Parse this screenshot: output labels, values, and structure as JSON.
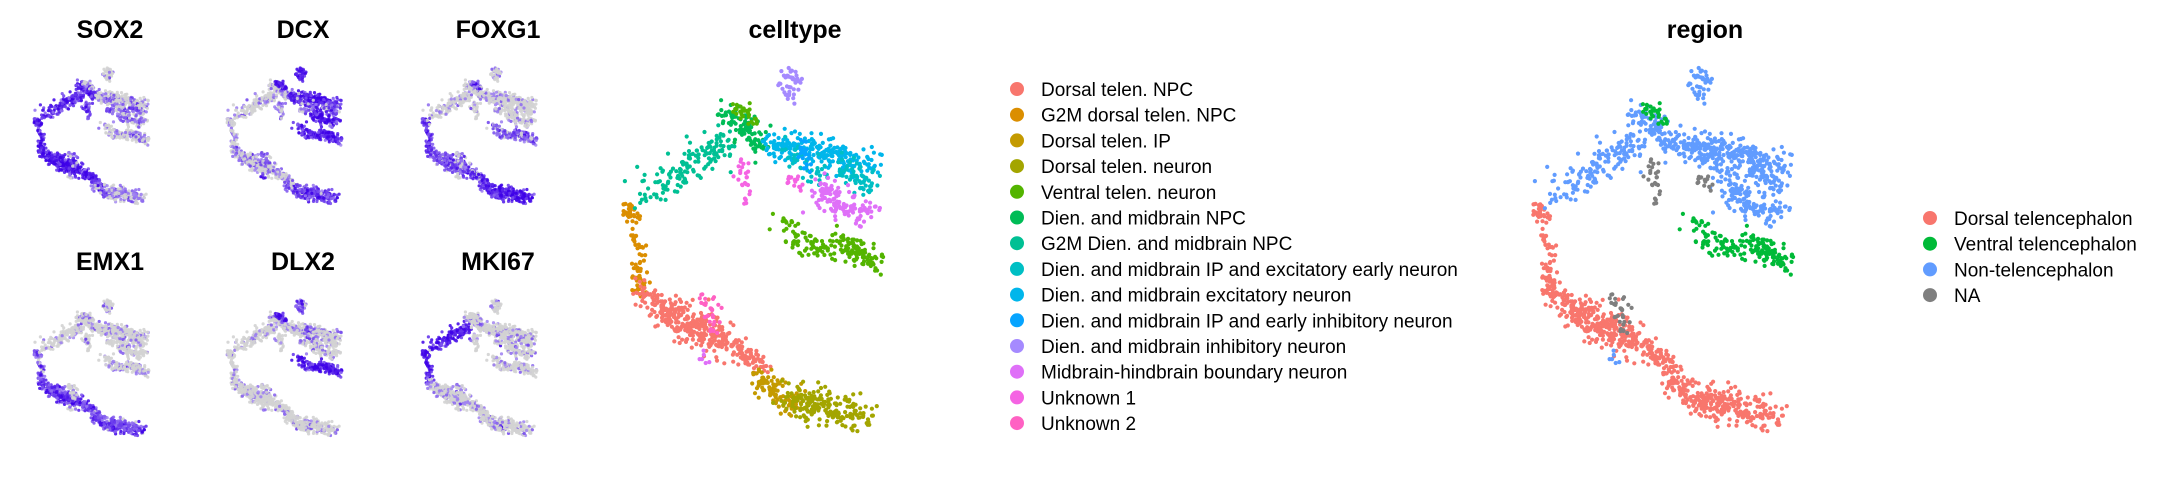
{
  "chart_data": [
    {
      "type": "scatter",
      "title": "SOX2",
      "encoding": "expression",
      "low_color": "#d3d3d3",
      "high_color": "#3d00e8",
      "high_regions": [
        "left arm",
        "lower diagonal",
        "upper-left arc"
      ]
    },
    {
      "type": "scatter",
      "title": "DCX",
      "encoding": "expression",
      "low_color": "#d3d3d3",
      "high_color": "#3d00e8",
      "high_regions": [
        "right cluster",
        "upper-right arc",
        "lower-right cluster"
      ]
    },
    {
      "type": "scatter",
      "title": "FOXG1",
      "encoding": "expression",
      "low_color": "#d3d3d3",
      "high_color": "#3d00e8",
      "high_regions": [
        "lower diagonal",
        "bottom tip"
      ]
    },
    {
      "type": "scatter",
      "title": "EMX1",
      "encoding": "expression",
      "low_color": "#d3d3d3",
      "high_color": "#3d00e8",
      "high_regions": [
        "lower diagonal",
        "bottom tip"
      ]
    },
    {
      "type": "scatter",
      "title": "DLX2",
      "encoding": "expression",
      "low_color": "#d3d3d3",
      "high_color": "#3d00e8",
      "high_regions": [
        "lower-right cluster",
        "middle branch"
      ]
    },
    {
      "type": "scatter",
      "title": "MKI67",
      "encoding": "expression",
      "low_color": "#d3d3d3",
      "high_color": "#3d00e8",
      "high_regions": [
        "left arm",
        "far left"
      ]
    },
    {
      "type": "scatter",
      "title": "celltype",
      "encoding": "category",
      "legend_position": "right",
      "categories": [
        {
          "label": "Dorsal telen. NPC",
          "color": "#f8766d"
        },
        {
          "label": "G2M dorsal telen. NPC",
          "color": "#db8e00"
        },
        {
          "label": "Dorsal telen. IP",
          "color": "#c49a00"
        },
        {
          "label": "Dorsal telen. neuron",
          "color": "#a3a500"
        },
        {
          "label": "Ventral telen. neuron",
          "color": "#53b400"
        },
        {
          "label": "Dien. and midbrain NPC",
          "color": "#00bc56"
        },
        {
          "label": "G2M Dien. and midbrain NPC",
          "color": "#00c094"
        },
        {
          "label": "Dien. and midbrain IP and excitatory early neuron",
          "color": "#00bfc4"
        },
        {
          "label": "Dien. and midbrain excitatory neuron",
          "color": "#00b6eb"
        },
        {
          "label": "Dien. and midbrain IP and early inhibitory neuron",
          "color": "#06a4ff"
        },
        {
          "label": "Dien. and midbrain inhibitory neuron",
          "color": "#a58aff"
        },
        {
          "label": "Midbrain-hindbrain boundary neuron",
          "color": "#df70f8"
        },
        {
          "label": "Unknown 1",
          "color": "#f564e3"
        },
        {
          "label": "Unknown 2",
          "color": "#ff61c3"
        }
      ]
    },
    {
      "type": "scatter",
      "title": "region",
      "encoding": "category",
      "legend_position": "right",
      "categories": [
        {
          "label": "Dorsal telencephalon",
          "color": "#f8766d"
        },
        {
          "label": "Ventral telencephalon",
          "color": "#00ba38"
        },
        {
          "label": "Non-telencephalon",
          "color": "#619cff"
        },
        {
          "label": "NA",
          "color": "#7f7f7f"
        }
      ]
    }
  ]
}
